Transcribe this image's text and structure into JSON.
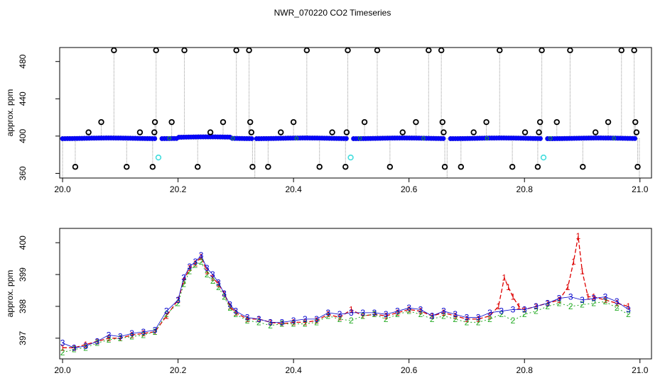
{
  "figure": {
    "title": "NWR_070220  CO2 Timeseries"
  },
  "colors": {
    "points": "#0000ff",
    "outline_black": "#000000",
    "gray_line": "#9a9a9a",
    "cyan": "#44dddd",
    "green": "#22aa22",
    "red": "#dd0000",
    "blue_text": "#0000cc",
    "orange": "#ff8800"
  },
  "chart_data": [
    {
      "type": "scatter",
      "title": "",
      "xlabel": "",
      "ylabel": "approx. ppm",
      "xlim": [
        19.995,
        21.02
      ],
      "ylim": [
        355,
        495
      ],
      "xticks": [
        "20.0",
        "20.2",
        "20.4",
        "20.6",
        "20.8",
        "21.0"
      ],
      "yticks": [
        "360",
        "400",
        "440",
        "480"
      ],
      "baseline_y": 397.6,
      "baseline_x_range": [
        20.0,
        20.995
      ],
      "gaps": [
        [
          20.163,
          20.172
        ],
        [
          20.328,
          20.336
        ],
        [
          20.495,
          20.503
        ],
        [
          20.662,
          20.67
        ],
        [
          20.828,
          20.836
        ]
      ],
      "outlier_points": [
        {
          "x": 20.022,
          "y": 367
        },
        {
          "x": 20.045,
          "y": 404
        },
        {
          "x": 20.067,
          "y": 415
        },
        {
          "x": 20.089,
          "y": 492
        },
        {
          "x": 20.111,
          "y": 367
        },
        {
          "x": 20.134,
          "y": 404
        },
        {
          "x": 20.156,
          "y": 367
        },
        {
          "x": 20.159,
          "y": 404
        },
        {
          "x": 20.16,
          "y": 415
        },
        {
          "x": 20.162,
          "y": 492
        },
        {
          "x": 20.189,
          "y": 415
        },
        {
          "x": 20.211,
          "y": 492
        },
        {
          "x": 20.234,
          "y": 367
        },
        {
          "x": 20.256,
          "y": 404
        },
        {
          "x": 20.278,
          "y": 415
        },
        {
          "x": 20.301,
          "y": 492
        },
        {
          "x": 20.323,
          "y": 492
        },
        {
          "x": 20.325,
          "y": 415
        },
        {
          "x": 20.327,
          "y": 404
        },
        {
          "x": 20.329,
          "y": 367
        },
        {
          "x": 20.356,
          "y": 367
        },
        {
          "x": 20.378,
          "y": 404
        },
        {
          "x": 20.4,
          "y": 415
        },
        {
          "x": 20.423,
          "y": 492
        },
        {
          "x": 20.445,
          "y": 367
        },
        {
          "x": 20.467,
          "y": 404
        },
        {
          "x": 20.49,
          "y": 367
        },
        {
          "x": 20.492,
          "y": 404
        },
        {
          "x": 20.494,
          "y": 492
        },
        {
          "x": 20.523,
          "y": 415
        },
        {
          "x": 20.545,
          "y": 492
        },
        {
          "x": 20.567,
          "y": 367
        },
        {
          "x": 20.589,
          "y": 404
        },
        {
          "x": 20.612,
          "y": 415
        },
        {
          "x": 20.634,
          "y": 492
        },
        {
          "x": 20.656,
          "y": 492
        },
        {
          "x": 20.658,
          "y": 415
        },
        {
          "x": 20.66,
          "y": 404
        },
        {
          "x": 20.662,
          "y": 367
        },
        {
          "x": 20.69,
          "y": 367
        },
        {
          "x": 20.712,
          "y": 404
        },
        {
          "x": 20.734,
          "y": 415
        },
        {
          "x": 20.757,
          "y": 492
        },
        {
          "x": 20.779,
          "y": 367
        },
        {
          "x": 20.801,
          "y": 404
        },
        {
          "x": 20.823,
          "y": 367
        },
        {
          "x": 20.825,
          "y": 404
        },
        {
          "x": 20.827,
          "y": 415
        },
        {
          "x": 20.83,
          "y": 492
        },
        {
          "x": 20.856,
          "y": 415
        },
        {
          "x": 20.879,
          "y": 492
        },
        {
          "x": 20.901,
          "y": 367
        },
        {
          "x": 20.923,
          "y": 404
        },
        {
          "x": 20.945,
          "y": 415
        },
        {
          "x": 20.968,
          "y": 492
        },
        {
          "x": 20.99,
          "y": 492
        },
        {
          "x": 20.992,
          "y": 415
        },
        {
          "x": 20.994,
          "y": 404
        },
        {
          "x": 20.996,
          "y": 367
        }
      ],
      "cyan_points": [
        {
          "x": 20.166,
          "y": 377
        },
        {
          "x": 20.499,
          "y": 377
        },
        {
          "x": 20.833,
          "y": 377
        }
      ]
    },
    {
      "type": "line",
      "title": "",
      "xlabel": "",
      "ylabel": "approx. ppm",
      "xlim": [
        19.995,
        21.02
      ],
      "ylim": [
        396.35,
        400.45
      ],
      "xticks": [
        "20.0",
        "20.2",
        "20.4",
        "20.6",
        "20.8",
        "21.0"
      ],
      "yticks": [
        "397",
        "398",
        "399",
        "400"
      ],
      "series": [
        {
          "marker": "1",
          "x": [
            20.0,
            20.02,
            20.04,
            20.06,
            20.08,
            20.1,
            20.12,
            20.14,
            20.16,
            20.18,
            20.2,
            20.21,
            20.22,
            20.23,
            20.24,
            20.25,
            20.26,
            20.27,
            20.28,
            20.29,
            20.3,
            20.32,
            20.34,
            20.36,
            20.38,
            20.4,
            20.42,
            20.44,
            20.46,
            20.48,
            20.5,
            20.52,
            20.54,
            20.56,
            20.58,
            20.6,
            20.62,
            20.64,
            20.66,
            20.68,
            20.7,
            20.72,
            20.74,
            20.755,
            20.765,
            20.772,
            20.78,
            20.79,
            20.8,
            20.82,
            20.84,
            20.86,
            20.875,
            20.885,
            20.893,
            20.9,
            20.91,
            20.92,
            20.94,
            20.96,
            20.98
          ],
          "y": [
            396.7,
            396.7,
            396.8,
            396.9,
            397.0,
            397.0,
            397.1,
            397.15,
            397.2,
            397.7,
            398.2,
            398.8,
            399.2,
            399.35,
            399.55,
            399.1,
            398.9,
            398.7,
            398.4,
            398.0,
            397.8,
            397.6,
            397.6,
            397.5,
            397.45,
            397.5,
            397.5,
            397.55,
            397.75,
            397.65,
            397.9,
            397.7,
            397.75,
            397.7,
            397.8,
            397.9,
            397.85,
            397.7,
            397.8,
            397.7,
            397.6,
            397.6,
            397.7,
            398.0,
            398.9,
            398.6,
            398.3,
            398.0,
            397.9,
            398.0,
            398.1,
            398.2,
            398.6,
            399.4,
            400.2,
            399.1,
            398.3,
            398.3,
            398.2,
            398.1,
            398.0
          ]
        },
        {
          "marker": "2",
          "x": [
            20.0,
            20.02,
            20.04,
            20.06,
            20.08,
            20.1,
            20.12,
            20.14,
            20.16,
            20.18,
            20.2,
            20.21,
            20.22,
            20.23,
            20.24,
            20.25,
            20.26,
            20.27,
            20.28,
            20.29,
            20.3,
            20.32,
            20.34,
            20.36,
            20.38,
            20.4,
            20.42,
            20.44,
            20.46,
            20.48,
            20.5,
            20.52,
            20.54,
            20.56,
            20.58,
            20.6,
            20.62,
            20.64,
            20.66,
            20.68,
            20.7,
            20.72,
            20.74,
            20.76,
            20.78,
            20.8,
            20.82,
            20.84,
            20.86,
            20.88,
            20.9,
            20.92,
            20.94,
            20.96,
            20.98
          ],
          "y": [
            396.55,
            396.65,
            396.7,
            396.85,
            396.95,
            397.0,
            397.05,
            397.1,
            397.2,
            397.75,
            398.1,
            398.7,
            399.1,
            399.3,
            399.4,
            399.0,
            398.8,
            398.6,
            398.3,
            397.95,
            397.75,
            397.55,
            397.5,
            397.4,
            397.45,
            397.45,
            397.45,
            397.5,
            397.7,
            397.6,
            397.55,
            397.7,
            397.75,
            397.6,
            397.75,
            397.85,
            397.75,
            397.6,
            397.7,
            397.6,
            397.5,
            397.5,
            397.6,
            397.75,
            397.55,
            397.75,
            397.85,
            398.0,
            398.1,
            398.0,
            398.05,
            398.1,
            398.15,
            397.95,
            397.75
          ]
        },
        {
          "marker": "3",
          "x": [
            20.0,
            20.02,
            20.04,
            20.06,
            20.08,
            20.1,
            20.12,
            20.14,
            20.16,
            20.18,
            20.2,
            20.21,
            20.22,
            20.23,
            20.24,
            20.25,
            20.26,
            20.27,
            20.28,
            20.29,
            20.3,
            20.32,
            20.34,
            20.36,
            20.38,
            20.4,
            20.42,
            20.44,
            20.46,
            20.48,
            20.5,
            20.52,
            20.54,
            20.56,
            20.58,
            20.6,
            20.62,
            20.64,
            20.66,
            20.68,
            20.7,
            20.72,
            20.74,
            20.76,
            20.78,
            20.8,
            20.82,
            20.84,
            20.86,
            20.88,
            20.9,
            20.92,
            20.94,
            20.96,
            20.98
          ],
          "y": [
            396.85,
            396.7,
            396.75,
            396.9,
            397.1,
            397.05,
            397.15,
            397.2,
            397.25,
            397.85,
            398.2,
            398.9,
            399.25,
            399.4,
            399.6,
            399.2,
            399.0,
            398.75,
            398.4,
            398.05,
            397.85,
            397.65,
            397.6,
            397.5,
            397.5,
            397.55,
            397.6,
            397.6,
            397.8,
            397.75,
            397.8,
            397.8,
            397.8,
            397.75,
            397.85,
            397.95,
            397.9,
            397.7,
            397.85,
            397.75,
            397.65,
            397.65,
            397.8,
            397.85,
            397.9,
            397.9,
            398.0,
            398.1,
            398.25,
            398.3,
            398.2,
            398.25,
            398.3,
            398.15,
            397.9
          ]
        }
      ]
    }
  ]
}
